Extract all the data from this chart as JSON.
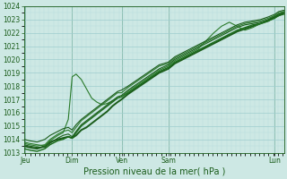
{
  "bg_color": "#cde8e4",
  "grid_color_major": "#9ecece",
  "grid_color_minor": "#b8dede",
  "line_colors": [
    "#1a5c1a",
    "#1a6b1a",
    "#2a7a2a",
    "#1a5c1a",
    "#2d7a2d",
    "#1a5c1a"
  ],
  "line_widths": [
    1.4,
    1.0,
    0.8,
    0.8,
    0.8,
    0.8
  ],
  "line_styles": [
    "-",
    "-",
    "-",
    "-",
    "-",
    "-"
  ],
  "tick_color": "#1a5c1a",
  "spine_color": "#1a5c1a",
  "xlabel": "Pression niveau de la mer( hPa )",
  "xlabel_fontsize": 7.0,
  "tick_fontsize": 5.5,
  "ylim": [
    1013,
    1024
  ],
  "yticks": [
    1013,
    1014,
    1015,
    1016,
    1017,
    1018,
    1019,
    1020,
    1021,
    1022,
    1023
  ],
  "xlim": [
    0,
    1.0
  ],
  "day_labels": [
    "Jeu",
    "Dim",
    "Ven",
    "Sam",
    "Lun"
  ],
  "day_positions": [
    0.005,
    0.185,
    0.375,
    0.555,
    0.965
  ],
  "vline_positions": [
    0.005,
    0.185,
    0.375,
    0.555,
    0.965
  ],
  "series": [
    {
      "x": [
        0.0,
        0.02,
        0.05,
        0.08,
        0.1,
        0.13,
        0.15,
        0.17,
        0.185,
        0.2,
        0.22,
        0.24,
        0.26,
        0.28,
        0.3,
        0.32,
        0.34,
        0.36,
        0.375,
        0.4,
        0.43,
        0.46,
        0.49,
        0.52,
        0.555,
        0.58,
        0.61,
        0.64,
        0.67,
        0.7,
        0.73,
        0.76,
        0.79,
        0.82,
        0.85,
        0.88,
        0.91,
        0.94,
        0.965,
        0.98,
        1.0
      ],
      "y": [
        1013.5,
        1013.4,
        1013.3,
        1013.5,
        1013.8,
        1014.0,
        1014.1,
        1014.2,
        1014.1,
        1014.3,
        1014.7,
        1014.9,
        1015.2,
        1015.5,
        1015.8,
        1016.1,
        1016.5,
        1016.8,
        1017.0,
        1017.4,
        1017.8,
        1018.2,
        1018.6,
        1019.0,
        1019.3,
        1019.7,
        1020.0,
        1020.3,
        1020.6,
        1020.9,
        1021.2,
        1021.5,
        1021.8,
        1022.1,
        1022.3,
        1022.5,
        1022.7,
        1022.9,
        1023.2,
        1023.3,
        1023.5
      ]
    },
    {
      "x": [
        0.0,
        0.02,
        0.05,
        0.08,
        0.1,
        0.13,
        0.15,
        0.17,
        0.185,
        0.2,
        0.22,
        0.24,
        0.26,
        0.28,
        0.3,
        0.32,
        0.34,
        0.36,
        0.375,
        0.4,
        0.43,
        0.46,
        0.49,
        0.52,
        0.555,
        0.58,
        0.61,
        0.64,
        0.67,
        0.7,
        0.73,
        0.76,
        0.79,
        0.82,
        0.85,
        0.88,
        0.91,
        0.94,
        0.965,
        0.98,
        1.0
      ],
      "y": [
        1013.3,
        1013.2,
        1013.1,
        1013.3,
        1013.6,
        1013.9,
        1014.0,
        1014.2,
        1014.1,
        1014.5,
        1015.0,
        1015.3,
        1015.6,
        1015.9,
        1016.2,
        1016.5,
        1016.8,
        1017.1,
        1017.2,
        1017.5,
        1017.9,
        1018.3,
        1018.7,
        1019.1,
        1019.4,
        1019.8,
        1020.1,
        1020.4,
        1020.7,
        1021.0,
        1021.3,
        1021.6,
        1021.9,
        1022.2,
        1022.4,
        1022.6,
        1022.7,
        1022.9,
        1023.1,
        1023.3,
        1023.4
      ]
    },
    {
      "x": [
        0.0,
        0.02,
        0.05,
        0.08,
        0.1,
        0.13,
        0.15,
        0.17,
        0.185,
        0.2,
        0.22,
        0.24,
        0.26,
        0.28,
        0.3,
        0.32,
        0.34,
        0.36,
        0.375,
        0.4,
        0.43,
        0.46,
        0.49,
        0.52,
        0.555,
        0.58,
        0.61,
        0.64,
        0.67,
        0.7,
        0.73,
        0.76,
        0.79,
        0.82,
        0.85,
        0.88,
        0.91,
        0.94,
        0.965,
        0.98,
        1.0
      ],
      "y": [
        1013.8,
        1013.7,
        1013.6,
        1013.5,
        1013.9,
        1014.3,
        1014.5,
        1015.5,
        1018.7,
        1018.9,
        1018.5,
        1017.8,
        1017.1,
        1016.8,
        1016.6,
        1016.7,
        1016.9,
        1017.1,
        1017.2,
        1017.6,
        1018.0,
        1018.4,
        1018.8,
        1019.2,
        1019.5,
        1019.9,
        1020.2,
        1020.5,
        1020.8,
        1021.4,
        1022.0,
        1022.5,
        1022.8,
        1022.5,
        1022.2,
        1022.4,
        1022.7,
        1023.0,
        1023.3,
        1023.4,
        1023.6
      ]
    },
    {
      "x": [
        0.0,
        0.02,
        0.05,
        0.08,
        0.1,
        0.13,
        0.15,
        0.17,
        0.185,
        0.2,
        0.22,
        0.24,
        0.26,
        0.28,
        0.3,
        0.32,
        0.34,
        0.36,
        0.375,
        0.4,
        0.43,
        0.46,
        0.49,
        0.52,
        0.555,
        0.58,
        0.61,
        0.64,
        0.67,
        0.7,
        0.73,
        0.76,
        0.79,
        0.82,
        0.85,
        0.88,
        0.91,
        0.94,
        0.965,
        0.98,
        1.0
      ],
      "y": [
        1013.6,
        1013.5,
        1013.4,
        1013.4,
        1013.7,
        1014.1,
        1014.3,
        1014.4,
        1014.2,
        1014.6,
        1015.1,
        1015.4,
        1015.7,
        1016.0,
        1016.3,
        1016.6,
        1016.9,
        1017.2,
        1017.3,
        1017.7,
        1018.1,
        1018.5,
        1018.9,
        1019.3,
        1019.6,
        1020.0,
        1020.3,
        1020.6,
        1020.9,
        1021.2,
        1021.5,
        1021.8,
        1022.1,
        1022.4,
        1022.6,
        1022.7,
        1022.8,
        1023.0,
        1023.2,
        1023.4,
        1023.5
      ]
    },
    {
      "x": [
        0.0,
        0.02,
        0.05,
        0.08,
        0.1,
        0.13,
        0.15,
        0.17,
        0.185,
        0.2,
        0.22,
        0.24,
        0.26,
        0.28,
        0.3,
        0.32,
        0.34,
        0.36,
        0.375,
        0.4,
        0.43,
        0.46,
        0.49,
        0.52,
        0.555,
        0.58,
        0.61,
        0.64,
        0.67,
        0.7,
        0.73,
        0.76,
        0.79,
        0.82,
        0.85,
        0.88,
        0.91,
        0.94,
        0.965,
        0.98,
        1.0
      ],
      "y": [
        1013.7,
        1013.6,
        1013.5,
        1013.6,
        1014.0,
        1014.4,
        1014.6,
        1014.7,
        1014.5,
        1014.9,
        1015.4,
        1015.7,
        1016.0,
        1016.3,
        1016.6,
        1016.9,
        1017.2,
        1017.5,
        1017.5,
        1017.9,
        1018.3,
        1018.7,
        1019.1,
        1019.5,
        1019.7,
        1020.1,
        1020.4,
        1020.7,
        1021.0,
        1021.3,
        1021.6,
        1021.9,
        1022.2,
        1022.5,
        1022.7,
        1022.8,
        1022.9,
        1023.1,
        1023.3,
        1023.5,
        1023.6
      ]
    },
    {
      "x": [
        0.0,
        0.02,
        0.05,
        0.08,
        0.1,
        0.13,
        0.15,
        0.17,
        0.185,
        0.2,
        0.22,
        0.24,
        0.26,
        0.28,
        0.3,
        0.32,
        0.34,
        0.36,
        0.375,
        0.4,
        0.43,
        0.46,
        0.49,
        0.52,
        0.555,
        0.58,
        0.61,
        0.64,
        0.67,
        0.7,
        0.73,
        0.76,
        0.79,
        0.82,
        0.85,
        0.88,
        0.91,
        0.94,
        0.965,
        0.98,
        1.0
      ],
      "y": [
        1014.0,
        1013.9,
        1013.8,
        1014.0,
        1014.3,
        1014.6,
        1014.8,
        1014.9,
        1014.7,
        1015.1,
        1015.5,
        1015.8,
        1016.1,
        1016.4,
        1016.7,
        1017.0,
        1017.3,
        1017.6,
        1017.7,
        1018.0,
        1018.4,
        1018.8,
        1019.2,
        1019.6,
        1019.8,
        1020.2,
        1020.5,
        1020.8,
        1021.1,
        1021.4,
        1021.7,
        1022.0,
        1022.3,
        1022.6,
        1022.8,
        1022.9,
        1023.0,
        1023.2,
        1023.4,
        1023.6,
        1023.7
      ]
    }
  ]
}
